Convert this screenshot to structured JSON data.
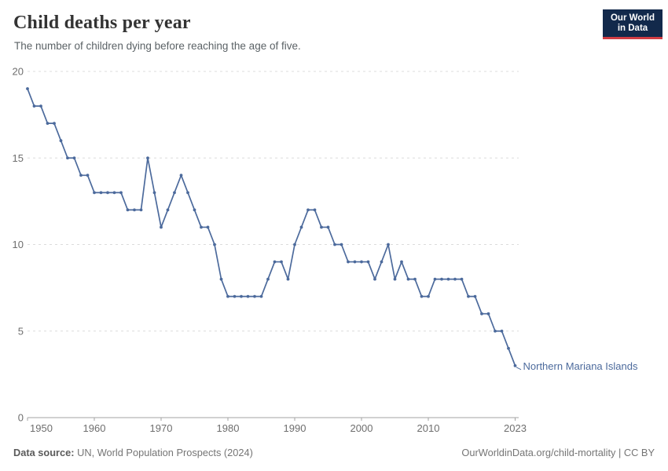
{
  "header": {
    "title": "Child deaths per year",
    "subtitle": "The number of children dying before reaching the age of five."
  },
  "logo": {
    "line1": "Our World",
    "line2": "in Data",
    "bg_color": "#12294b",
    "accent_color": "#d13d44"
  },
  "chart_data": {
    "type": "line",
    "title": "Child deaths per year",
    "subtitle": "The number of children dying before reaching the age of five.",
    "xlabel": "",
    "ylabel": "",
    "ylim": [
      0,
      20
    ],
    "xlim": [
      1950,
      2023
    ],
    "y_ticks": [
      0,
      5,
      10,
      15,
      20
    ],
    "x_ticks": [
      1950,
      1960,
      1970,
      1980,
      1990,
      2000,
      2010,
      2023
    ],
    "grid": "horizontal-dashed",
    "legend_position": "end-of-line-label",
    "series": [
      {
        "name": "Northern Mariana Islands",
        "color": "#4C6A9C",
        "x": [
          1950,
          1951,
          1952,
          1953,
          1954,
          1955,
          1956,
          1957,
          1958,
          1959,
          1960,
          1961,
          1962,
          1963,
          1964,
          1965,
          1966,
          1967,
          1968,
          1969,
          1970,
          1971,
          1972,
          1973,
          1974,
          1975,
          1976,
          1977,
          1978,
          1979,
          1980,
          1981,
          1982,
          1983,
          1984,
          1985,
          1986,
          1987,
          1988,
          1989,
          1990,
          1991,
          1992,
          1993,
          1994,
          1995,
          1996,
          1997,
          1998,
          1999,
          2000,
          2001,
          2002,
          2003,
          2004,
          2005,
          2006,
          2007,
          2008,
          2009,
          2010,
          2011,
          2012,
          2013,
          2014,
          2015,
          2016,
          2017,
          2018,
          2019,
          2020,
          2021,
          2022,
          2023
        ],
        "values": [
          19,
          18,
          18,
          17,
          17,
          16,
          15,
          15,
          14,
          14,
          13,
          13,
          13,
          13,
          13,
          12,
          12,
          12,
          15,
          13,
          11,
          12,
          13,
          14,
          13,
          12,
          11,
          11,
          10,
          8,
          7,
          7,
          7,
          7,
          7,
          7,
          8,
          9,
          9,
          8,
          10,
          11,
          12,
          12,
          11,
          11,
          10,
          10,
          9,
          9,
          9,
          9,
          8,
          9,
          10,
          8,
          9,
          8,
          8,
          7,
          7,
          8,
          8,
          8,
          8,
          8,
          7,
          7,
          6,
          6,
          5,
          5,
          4,
          3
        ]
      }
    ]
  },
  "footer": {
    "source_label": "Data source:",
    "source_value": "UN, World Population Prospects (2024)",
    "link": "OurWorldinData.org/child-mortality | CC BY"
  },
  "colors": {
    "line": "#4C6A9C",
    "gridline": "#dcdcdc",
    "axis": "#a3a3a3",
    "tick_text": "#6e6e6e"
  }
}
